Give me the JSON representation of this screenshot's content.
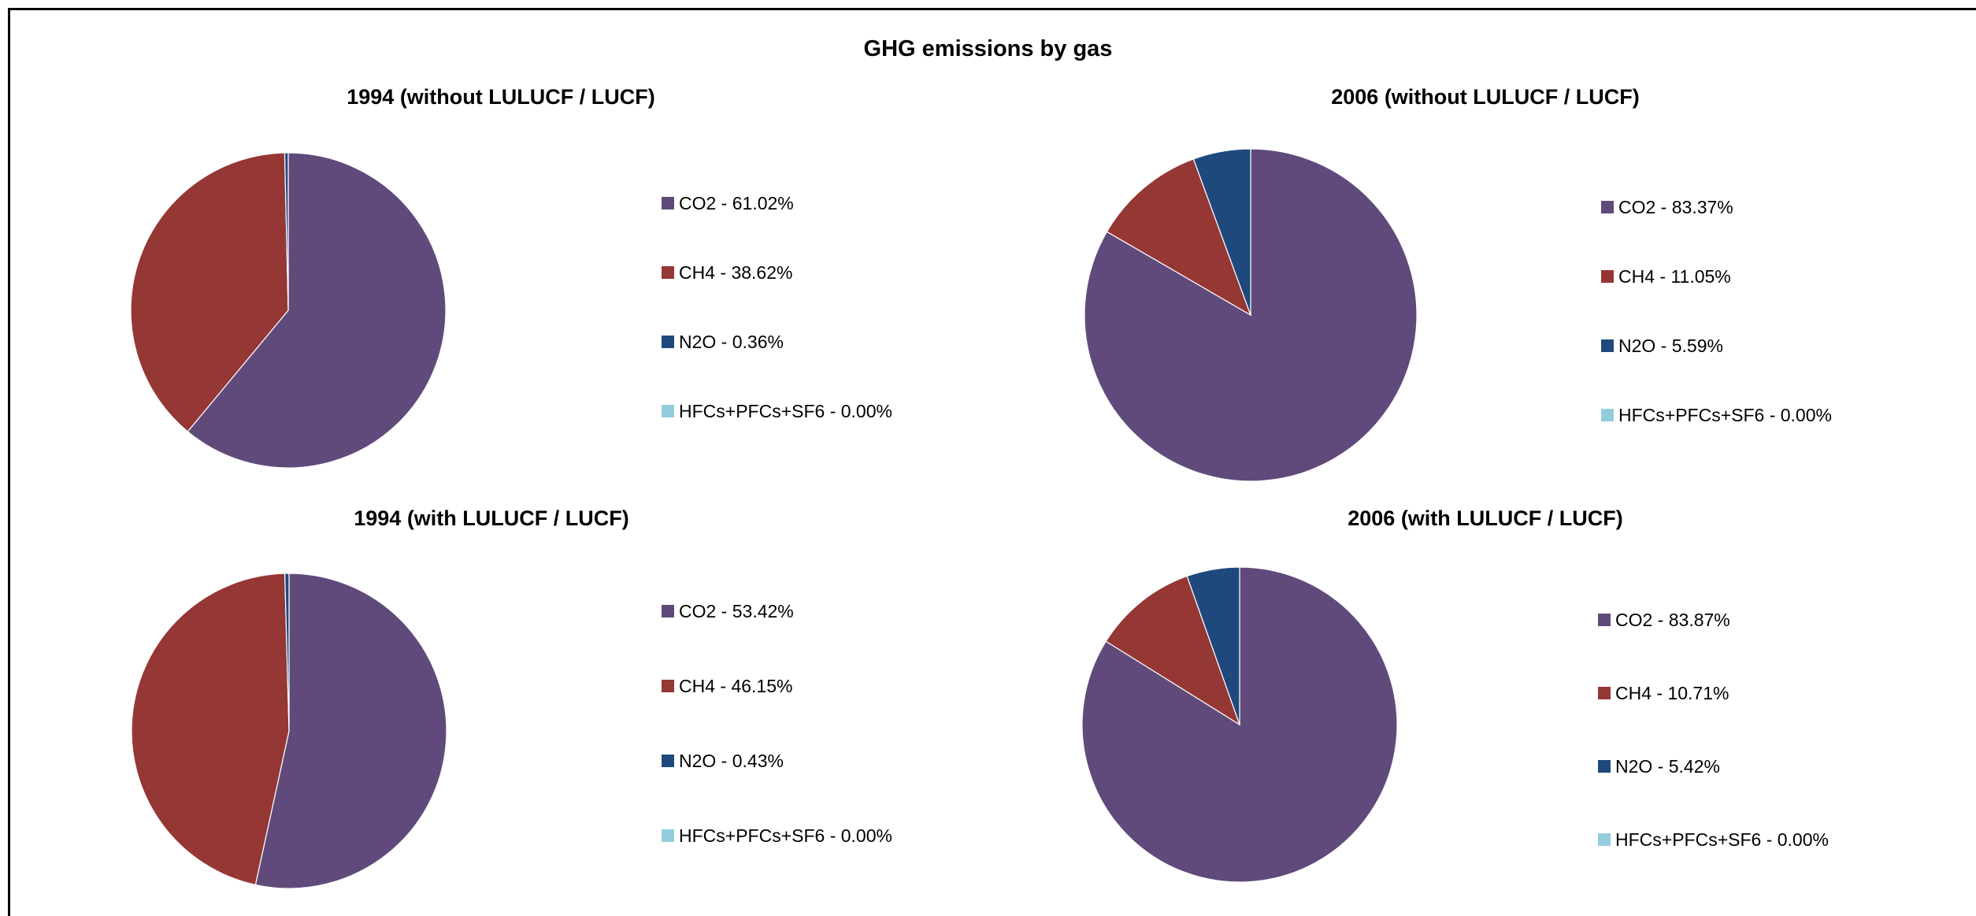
{
  "title": "GHG emissions by gas",
  "colors": {
    "CO2": "#604a7b",
    "CH4": "#953735",
    "N2O": "#1f497d",
    "HFCs+PFCs+SF6": "#93cddd"
  },
  "chart_data": [
    {
      "type": "pie",
      "title": "1994 (without LULUCF / LUCF)",
      "categories": [
        "CO2",
        "CH4",
        "N2O",
        "HFCs+PFCs+SF6"
      ],
      "values": [
        61.02,
        38.62,
        0.36,
        0.0
      ],
      "legend_labels": [
        "CO2 - 61.02%",
        "CH4 - 38.62%",
        "N2O - 0.36%",
        "HFCs+PFCs+SF6 - 0.00%"
      ],
      "legend": "right"
    },
    {
      "type": "pie",
      "title": "2006 (without LULUCF / LUCF)",
      "categories": [
        "CO2",
        "CH4",
        "N2O",
        "HFCs+PFCs+SF6"
      ],
      "values": [
        83.37,
        11.05,
        5.59,
        0.0
      ],
      "legend_labels": [
        "CO2 - 83.37%",
        "CH4 - 11.05%",
        "N2O - 5.59%",
        "HFCs+PFCs+SF6 - 0.00%"
      ],
      "legend": "right"
    },
    {
      "type": "pie",
      "title": "1994 (with LULUCF / LUCF)",
      "categories": [
        "CO2",
        "CH4",
        "N2O",
        "HFCs+PFCs+SF6"
      ],
      "values": [
        53.42,
        46.15,
        0.43,
        0.0
      ],
      "legend_labels": [
        "CO2 - 53.42%",
        "CH4 - 46.15%",
        "N2O - 0.43%",
        "HFCs+PFCs+SF6 - 0.00%"
      ],
      "legend": "right"
    },
    {
      "type": "pie",
      "title": "2006 (with LULUCF / LUCF)",
      "categories": [
        "CO2",
        "CH4",
        "N2O",
        "HFCs+PFCs+SF6"
      ],
      "values": [
        83.87,
        10.71,
        5.42,
        0.0
      ],
      "legend_labels": [
        "CO2 - 83.87%",
        "CH4 - 10.71%",
        "N2O - 5.42%",
        "HFCs+PFCs+SF6 - 0.00%"
      ],
      "legend": "right"
    }
  ]
}
